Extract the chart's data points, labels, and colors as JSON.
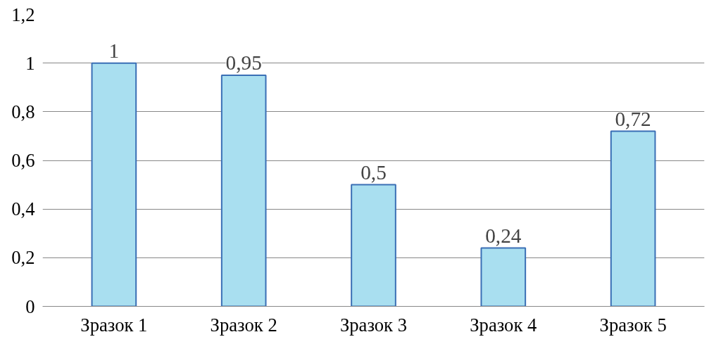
{
  "chart_data": {
    "type": "bar",
    "categories": [
      "Зразок 1",
      "Зразок 2",
      "Зразок 3",
      "Зразок 4",
      "Зразок 5"
    ],
    "values": [
      1,
      0.95,
      0.5,
      0.24,
      0.72
    ],
    "value_labels": [
      "1",
      "0,95",
      "0,5",
      "0,24",
      "0,72"
    ],
    "color": "#a9dff0",
    "ylim": [
      0,
      1.2
    ],
    "yticks": [
      0,
      {
        "value": 0.2,
        "label": "0,2"
      },
      {
        "value": 0.4,
        "label": "0,4"
      },
      {
        "value": 0.6,
        "label": "0,6"
      },
      {
        "value": 0.8,
        "label": "0,8"
      },
      1,
      {
        "value": 1.2,
        "label": "1,2"
      }
    ],
    "grid": "y"
  }
}
